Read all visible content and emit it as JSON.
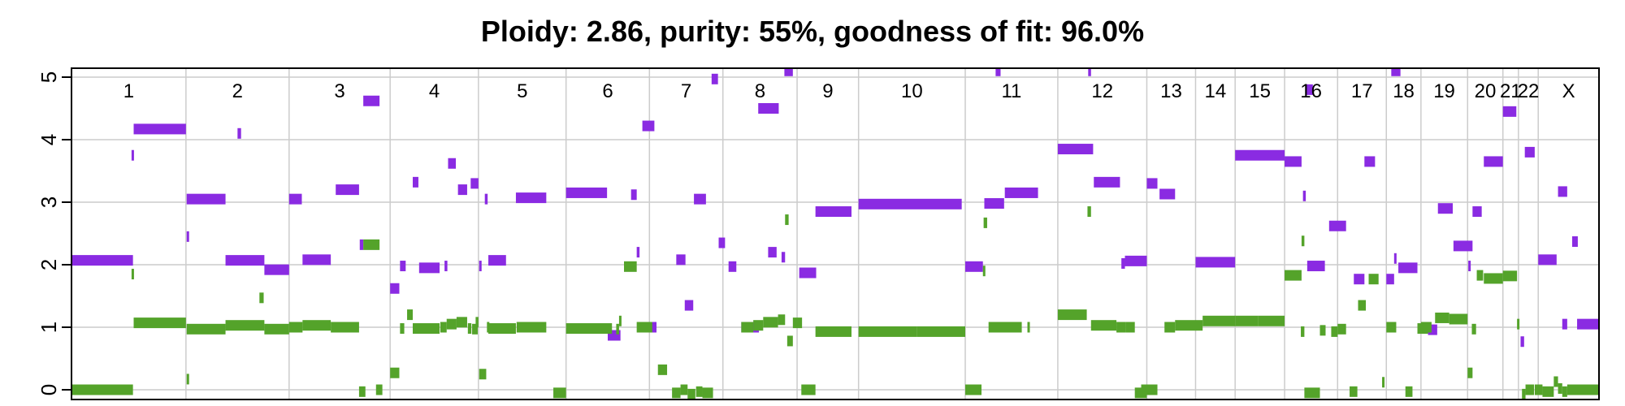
{
  "chart_data": {
    "type": "scatter",
    "title": "Ploidy: 2.86, purity: 55%, goodness of fit: 96.0%",
    "xlabel": "",
    "ylabel": "",
    "ylim": [
      0,
      5
    ],
    "yticks": [
      0,
      1,
      2,
      3,
      4,
      5
    ],
    "grid": true,
    "legend": "none",
    "colors": {
      "major": "#8a2be2",
      "minor": "#54a32a",
      "grid": "#cccccc",
      "axis": "#000000"
    },
    "chromosomes": [
      "1",
      "2",
      "3",
      "4",
      "5",
      "6",
      "7",
      "8",
      "9",
      "10",
      "11",
      "12",
      "13",
      "14",
      "15",
      "16",
      "17",
      "18",
      "19",
      "20",
      "21",
      "22",
      "X"
    ],
    "boundaries": [
      0,
      162,
      308,
      451,
      576,
      700,
      818,
      922,
      1027,
      1114,
      1265,
      1396,
      1522,
      1591,
      1647,
      1717,
      1792,
      1861,
      1910,
      1976,
      2026,
      2048,
      2076,
      2162
    ],
    "series": [
      {
        "key": "major",
        "segments": [
          [
            0,
            87,
            2.07
          ],
          [
            85,
            88,
            3.75
          ],
          [
            88,
            162,
            4.17
          ],
          [
            163,
            164,
            2.45
          ],
          [
            163,
            218,
            3.05
          ],
          [
            235,
            240,
            4.1
          ],
          [
            218,
            273,
            2.07
          ],
          [
            273,
            308,
            1.92
          ],
          [
            308,
            326,
            3.05
          ],
          [
            327,
            367,
            2.08
          ],
          [
            374,
            407,
            3.2
          ],
          [
            408,
            413,
            2.32
          ],
          [
            413,
            436,
            4.62
          ],
          [
            451,
            464,
            1.62
          ],
          [
            465,
            473,
            1.98
          ],
          [
            483,
            491,
            3.32
          ],
          [
            492,
            521,
            1.95
          ],
          [
            528,
            532,
            1.98
          ],
          [
            533,
            544,
            3.62
          ],
          [
            547,
            560,
            3.2
          ],
          [
            565,
            576,
            3.3
          ],
          [
            577,
            580,
            1.98
          ],
          [
            585,
            589,
            3.05
          ],
          [
            590,
            615,
            2.07
          ],
          [
            629,
            672,
            3.07
          ],
          [
            700,
            758,
            3.15
          ],
          [
            759,
            777,
            0.87
          ],
          [
            792,
            800,
            3.12
          ],
          [
            800,
            804,
            2.2
          ],
          [
            808,
            825,
            4.22
          ],
          [
            818,
            828,
            1.0
          ],
          [
            856,
            869,
            2.08
          ],
          [
            868,
            880,
            1.35
          ],
          [
            881,
            898,
            3.05
          ],
          [
            906,
            915,
            4.97
          ],
          [
            916,
            925,
            2.35
          ],
          [
            930,
            941,
            1.97
          ],
          [
            948,
            973,
            1.0
          ],
          [
            972,
            1001,
            4.5
          ],
          [
            986,
            998,
            2.2
          ],
          [
            1005,
            1010,
            2.12
          ],
          [
            1009,
            1021,
            5.1
          ],
          [
            1030,
            1054,
            1.87
          ],
          [
            1053,
            1104,
            2.85
          ],
          [
            1114,
            1260,
            2.97
          ],
          [
            1265,
            1290,
            1.97
          ],
          [
            1292,
            1320,
            2.98
          ],
          [
            1308,
            1315,
            5.1
          ],
          [
            1321,
            1368,
            3.15
          ],
          [
            1396,
            1446,
            3.85
          ],
          [
            1439,
            1443,
            5.1
          ],
          [
            1447,
            1484,
            3.32
          ],
          [
            1486,
            1491,
            2.02
          ],
          [
            1491,
            1522,
            2.06
          ],
          [
            1522,
            1537,
            3.3
          ],
          [
            1540,
            1562,
            3.13
          ],
          [
            1591,
            1647,
            2.04
          ],
          [
            1647,
            1717,
            3.75
          ],
          [
            1717,
            1741,
            3.65
          ],
          [
            1743,
            1747,
            3.1
          ],
          [
            1748,
            1757,
            4.8
          ],
          [
            1749,
            1774,
            1.98
          ],
          [
            1780,
            1804,
            2.62
          ],
          [
            1815,
            1830,
            1.77
          ],
          [
            1830,
            1845,
            3.65
          ],
          [
            1861,
            1872,
            1.77
          ],
          [
            1868,
            1881,
            5.1
          ],
          [
            1872,
            1875,
            2.1
          ],
          [
            1878,
            1905,
            1.95
          ],
          [
            1920,
            1933,
            0.96
          ],
          [
            1934,
            1955,
            2.9
          ],
          [
            1956,
            1983,
            2.3
          ],
          [
            1977,
            1980,
            1.98
          ],
          [
            1983,
            1996,
            2.85
          ],
          [
            1999,
            2026,
            3.65
          ],
          [
            2026,
            2045,
            4.45
          ],
          [
            2051,
            2056,
            0.77
          ],
          [
            2057,
            2071,
            3.8
          ],
          [
            2076,
            2102,
            2.08
          ],
          [
            2104,
            2117,
            3.17
          ],
          [
            2110,
            2117,
            1.05
          ],
          [
            2124,
            2132,
            2.37
          ],
          [
            2131,
            2162,
            1.05
          ]
        ]
      },
      {
        "key": "minor",
        "segments": [
          [
            0,
            87,
            0.0
          ],
          [
            85,
            88,
            1.85
          ],
          [
            88,
            162,
            1.07
          ],
          [
            163,
            164,
            0.17
          ],
          [
            163,
            218,
            0.97
          ],
          [
            218,
            273,
            1.03
          ],
          [
            266,
            272,
            1.47
          ],
          [
            273,
            308,
            0.97
          ],
          [
            308,
            327,
            1.0
          ],
          [
            327,
            367,
            1.03
          ],
          [
            367,
            407,
            1.0
          ],
          [
            413,
            436,
            2.32
          ],
          [
            407,
            416,
            -0.03
          ],
          [
            431,
            440,
            0.0
          ],
          [
            451,
            464,
            0.27
          ],
          [
            465,
            471,
            0.98
          ],
          [
            475,
            483,
            1.2
          ],
          [
            483,
            521,
            0.98
          ],
          [
            522,
            531,
            1.0
          ],
          [
            531,
            545,
            1.05
          ],
          [
            545,
            560,
            1.08
          ],
          [
            561,
            566,
            0.98
          ],
          [
            567,
            575,
            0.97
          ],
          [
            572,
            576,
            1.08
          ],
          [
            577,
            587,
            0.25
          ],
          [
            588,
            590,
            1.0
          ],
          [
            590,
            629,
            0.98
          ],
          [
            630,
            672,
            1.0
          ],
          [
            682,
            700,
            -0.05
          ],
          [
            700,
            765,
            0.98
          ],
          [
            771,
            775,
            0.97
          ],
          [
            775,
            778,
            1.1
          ],
          [
            782,
            800,
            1.97
          ],
          [
            800,
            822,
            1.0
          ],
          [
            830,
            843,
            0.32
          ],
          [
            850,
            862,
            -0.05
          ],
          [
            862,
            872,
            0.0
          ],
          [
            872,
            883,
            -0.07
          ],
          [
            884,
            893,
            -0.03
          ],
          [
            893,
            908,
            -0.05
          ],
          [
            948,
            965,
            1.0
          ],
          [
            965,
            979,
            1.03
          ],
          [
            979,
            1000,
            1.08
          ],
          [
            1000,
            1010,
            1.12
          ],
          [
            1010,
            1015,
            2.72
          ],
          [
            1013,
            1021,
            0.78
          ],
          [
            1021,
            1034,
            1.07
          ],
          [
            1033,
            1053,
            0.0
          ],
          [
            1053,
            1104,
            0.93
          ],
          [
            1114,
            1197,
            0.93
          ],
          [
            1197,
            1265,
            0.93
          ],
          [
            1265,
            1288,
            0.0
          ],
          [
            1290,
            1292,
            1.9
          ],
          [
            1291,
            1296,
            2.67
          ],
          [
            1298,
            1345,
            1.0
          ],
          [
            1353,
            1356,
            1.0
          ],
          [
            1396,
            1437,
            1.2
          ],
          [
            1438,
            1443,
            2.85
          ],
          [
            1443,
            1479,
            1.03
          ],
          [
            1479,
            1492,
            1.0
          ],
          [
            1492,
            1505,
            1.0
          ],
          [
            1505,
            1522,
            -0.05
          ],
          [
            1514,
            1537,
            0.0
          ],
          [
            1547,
            1562,
            1.0
          ],
          [
            1562,
            1601,
            1.03
          ],
          [
            1601,
            1647,
            1.1
          ],
          [
            1647,
            1680,
            1.1
          ],
          [
            1680,
            1717,
            1.1
          ],
          [
            1717,
            1741,
            1.83
          ],
          [
            1740,
            1745,
            0.93
          ],
          [
            1741,
            1745,
            2.38
          ],
          [
            1745,
            1767,
            -0.05
          ],
          [
            1767,
            1775,
            0.95
          ],
          [
            1783,
            1792,
            0.93
          ],
          [
            1792,
            1804,
            0.97
          ],
          [
            1809,
            1820,
            -0.03
          ],
          [
            1821,
            1832,
            1.35
          ],
          [
            1836,
            1850,
            1.77
          ],
          [
            1855,
            1858,
            0.12
          ],
          [
            1861,
            1875,
            1.0
          ],
          [
            1888,
            1898,
            -0.03
          ],
          [
            1905,
            1920,
            0.98
          ],
          [
            1910,
            1925,
            1.0
          ],
          [
            1930,
            1950,
            1.15
          ],
          [
            1950,
            1976,
            1.13
          ],
          [
            1976,
            1983,
            0.27
          ],
          [
            1982,
            1988,
            0.97
          ],
          [
            1989,
            1998,
            1.83
          ],
          [
            1999,
            2026,
            1.78
          ],
          [
            2026,
            2046,
            1.82
          ],
          [
            2046,
            2048,
            1.05
          ],
          [
            2053,
            2058,
            -0.07
          ],
          [
            2058,
            2070,
            0.0
          ],
          [
            2071,
            2082,
            0.0
          ],
          [
            2082,
            2098,
            -0.03
          ],
          [
            2098,
            2104,
            0.13
          ],
          [
            2104,
            2110,
            0.02
          ],
          [
            2110,
            2117,
            -0.03
          ],
          [
            2117,
            2162,
            0.0
          ]
        ]
      }
    ]
  }
}
